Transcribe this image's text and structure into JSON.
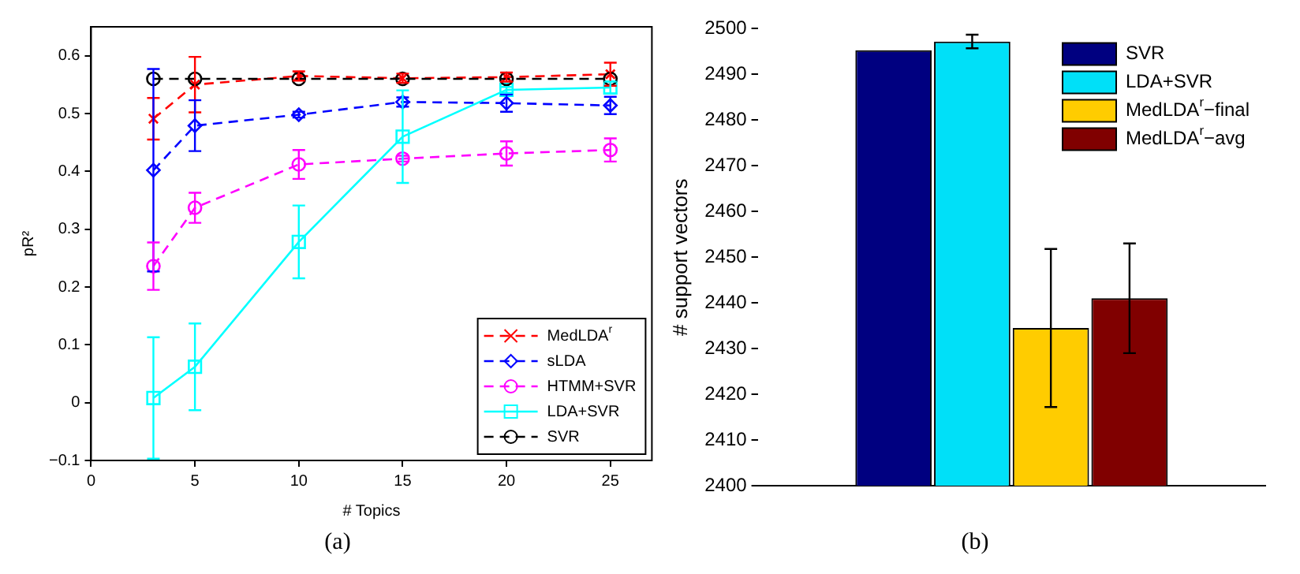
{
  "chart_data": [
    {
      "type": "line",
      "xlabel": "# Topics",
      "ylabel": "pR²",
      "x": [
        3,
        5,
        10,
        15,
        20,
        25
      ],
      "xlim": [
        0,
        27
      ],
      "xticks": [
        0,
        5,
        10,
        15,
        20,
        25
      ],
      "ylim": [
        -0.1,
        0.65
      ],
      "yticks": [
        {
          "value": -0.1,
          "label": "−0.1"
        },
        0,
        0.1,
        0.2,
        0.3,
        0.4,
        0.5,
        0.6
      ],
      "grid": false,
      "legend": "bottom right",
      "annotations": [
        "(a)"
      ],
      "series": [
        {
          "name": "MedLDA$^{r}$",
          "color": "#ff0000",
          "marker": "cross",
          "line_style": "dashed",
          "values": [
            0.491,
            0.55,
            0.565,
            0.561,
            0.563,
            0.568
          ],
          "errors": [
            0.036,
            0.048,
            0.008,
            0.008,
            0.008,
            0.02
          ]
        },
        {
          "name": "sLDA",
          "color": "#0000ff",
          "marker": "diamond",
          "line_style": "dashed",
          "values": [
            0.402,
            0.479,
            0.498,
            0.52,
            0.518,
            0.514
          ],
          "errors": [
            0.175,
            0.044,
            0.005,
            0.008,
            0.015,
            0.015
          ]
        },
        {
          "name": "HTMM+SVR",
          "color": "#ff00ff",
          "marker": "circle",
          "line_style": "dashed",
          "values": [
            0.236,
            0.337,
            0.412,
            0.422,
            0.431,
            0.437
          ],
          "errors": [
            0.041,
            0.026,
            0.025,
            0.005,
            0.021,
            0.02
          ]
        },
        {
          "name": "LDA+SVR",
          "color": "#00ffff",
          "marker": "square",
          "line_style": "solid",
          "values": [
            0.008,
            0.062,
            0.278,
            0.46,
            0.541,
            0.545
          ],
          "errors": [
            0.105,
            0.075,
            0.063,
            0.08,
            0.005,
            0.01
          ]
        },
        {
          "name": "SVR",
          "color": "#000000",
          "marker": "circle",
          "line_style": "dashed",
          "values": [
            0.56,
            0.56,
            0.56,
            0.56,
            0.56,
            0.56
          ]
        }
      ]
    },
    {
      "type": "bar",
      "categories": [
        null
      ],
      "ylabel": "# support vectors",
      "ylim": [
        2400,
        2500
      ],
      "yticks": [
        2400,
        2410,
        2420,
        2430,
        2440,
        2450,
        2460,
        2470,
        2480,
        2490,
        2500
      ],
      "grid": false,
      "legend": "top right",
      "annotations": [
        "(b)"
      ],
      "series": [
        {
          "name": "SVR",
          "color": "#000080",
          "values": [
            2495.3
          ]
        },
        {
          "name": "LDA+SVR",
          "color": "#00e0f8",
          "values": [
            2497.2
          ],
          "errors": [
            1.5
          ]
        },
        {
          "name": "MedLDA$^{r}$−final",
          "color": "#ffcc00",
          "values": [
            2434.5
          ],
          "errors": [
            17.3
          ]
        },
        {
          "name": "MedLDA$^{r}$−avg",
          "color": "#800000",
          "values": [
            2441
          ],
          "errors": [
            12
          ]
        }
      ]
    }
  ]
}
